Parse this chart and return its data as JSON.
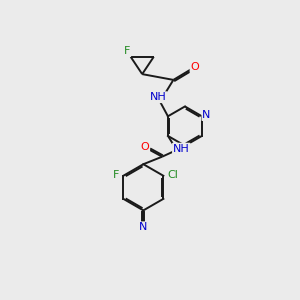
{
  "bg_color": "#ebebeb",
  "bond_color": "#1a1a1a",
  "atom_colors": {
    "F": "#228B22",
    "O": "#ff0000",
    "N": "#0000cc",
    "C": "#1a1a1a",
    "Cl": "#228B22",
    "H": "#1a1a1a"
  },
  "font_size": 8.0,
  "line_width": 1.4
}
